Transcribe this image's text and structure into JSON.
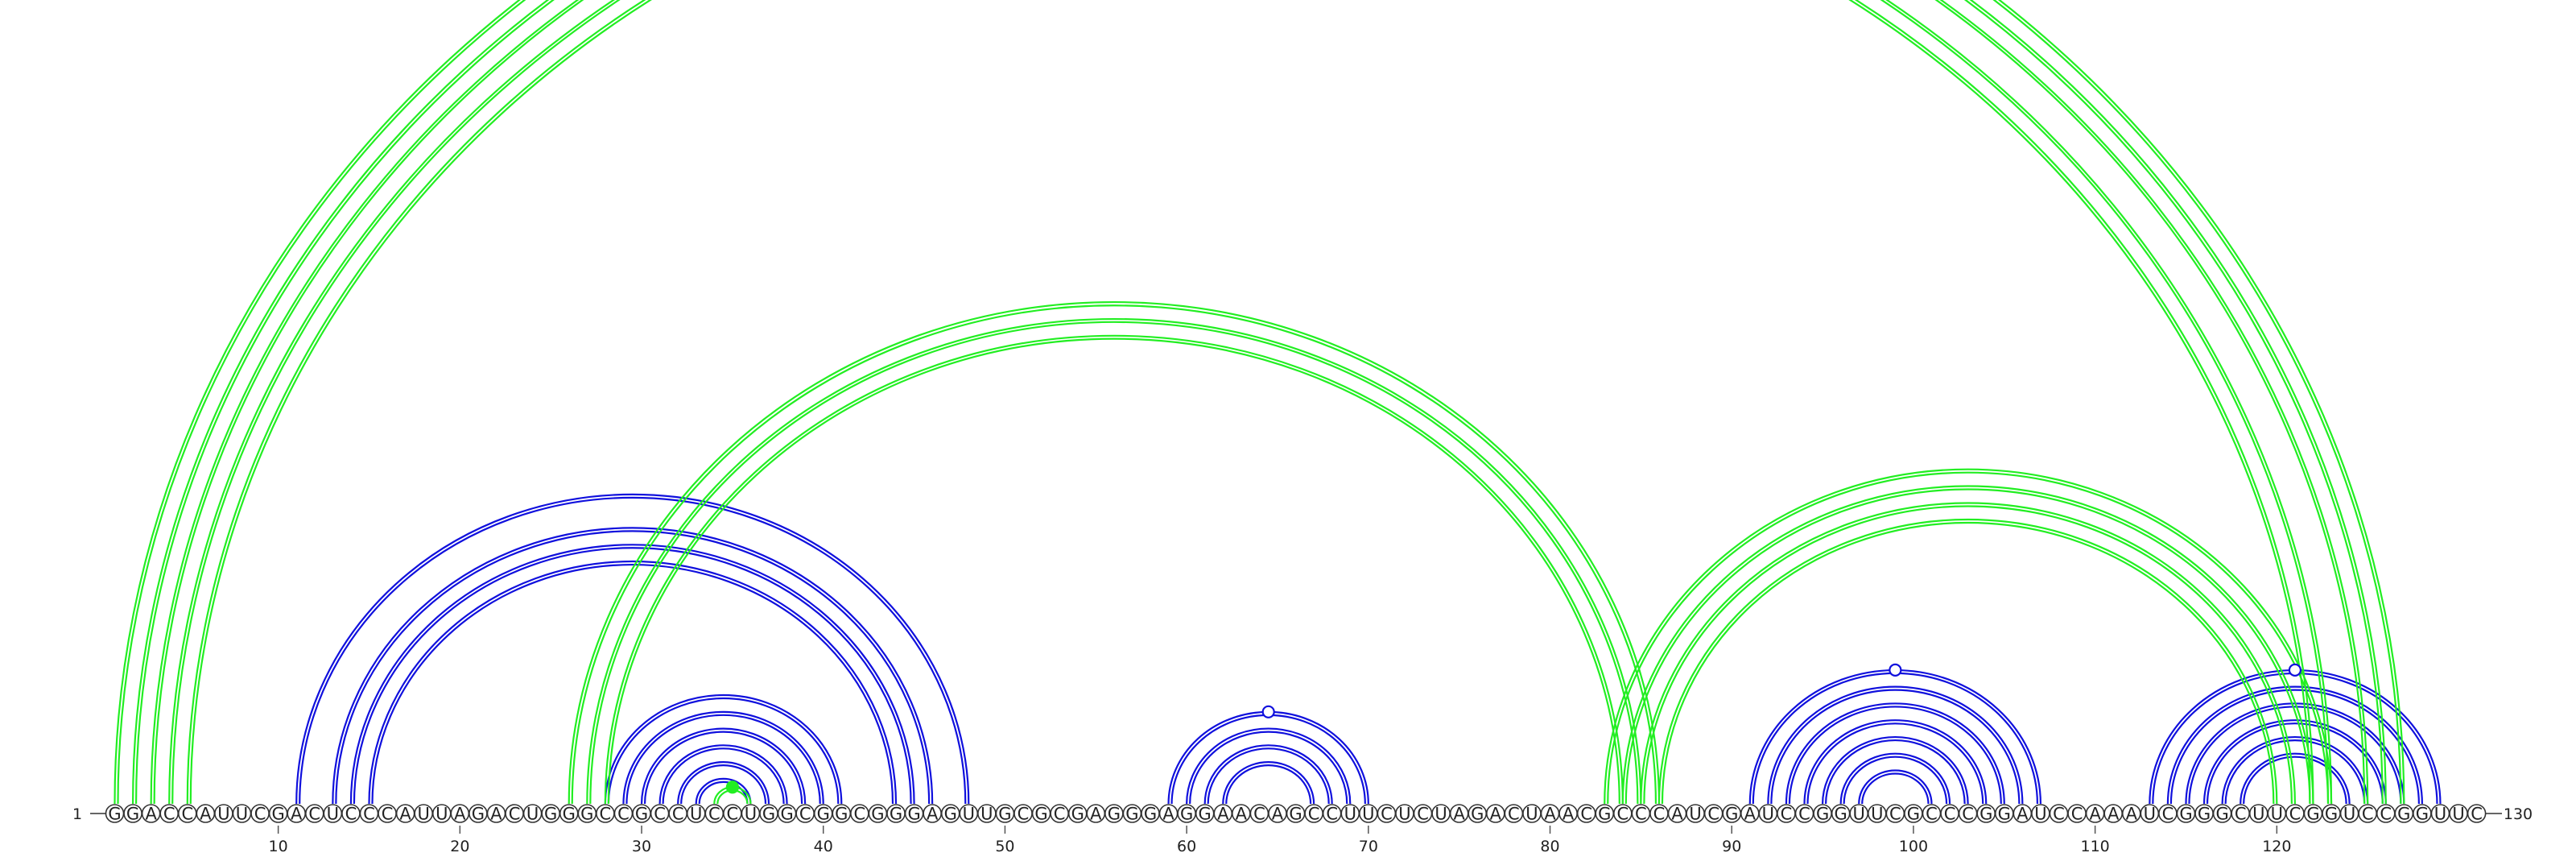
{
  "sequence": "GGACCAUUCGACUCCCAUUAGACUGGGCCGCCUCCUGGCGGCGGGAGUUGCGCGAGGGAGGAACAGCCUUCUCUAGACUAACGCCCAUCGAUCCGGUUCGCCCGGAUCCAAAUCGGGCUUCGGUCCGGUUC",
  "start_label": "1",
  "end_label": "130",
  "tick_labels": [
    "10",
    "20",
    "30",
    "40",
    "50",
    "60",
    "70",
    "80",
    "90",
    "100",
    "110",
    "120"
  ],
  "colors": {
    "pseudoknot": "#22ee22",
    "nested": "#1010dd"
  },
  "chart_data": {
    "type": "arc-diagram",
    "length": 130,
    "ticks": [
      10,
      20,
      30,
      40,
      50,
      60,
      70,
      80,
      90,
      100,
      110,
      120
    ],
    "nested_pairs": [
      [
        11,
        48
      ],
      [
        13,
        46
      ],
      [
        14,
        45
      ],
      [
        15,
        44
      ],
      [
        28,
        41
      ],
      [
        29,
        40
      ],
      [
        30,
        39
      ],
      [
        31,
        38
      ],
      [
        32,
        37
      ],
      [
        33,
        36
      ],
      [
        59,
        70
      ],
      [
        60,
        69
      ],
      [
        61,
        68
      ],
      [
        62,
        67
      ],
      [
        91,
        107
      ],
      [
        92,
        106
      ],
      [
        93,
        105
      ],
      [
        94,
        104
      ],
      [
        95,
        103
      ],
      [
        96,
        102
      ],
      [
        97,
        101
      ],
      [
        113,
        129
      ],
      [
        114,
        128
      ],
      [
        115,
        127
      ],
      [
        116,
        126
      ],
      [
        117,
        125
      ],
      [
        118,
        124
      ]
    ],
    "pseudoknot_pairs": [
      [
        1,
        127
      ],
      [
        2,
        126
      ],
      [
        3,
        125
      ],
      [
        4,
        123
      ],
      [
        5,
        122
      ],
      [
        26,
        86
      ],
      [
        27,
        85
      ],
      [
        28,
        84
      ],
      [
        83,
        123
      ],
      [
        84,
        122
      ],
      [
        85,
        121
      ],
      [
        86,
        120
      ],
      [
        34,
        36
      ]
    ],
    "markers": [
      {
        "position": 65,
        "kind": "open",
        "color": "pseudoknot"
      },
      {
        "position": 64,
        "kind": "open",
        "color": "nested"
      },
      {
        "position": 99,
        "kind": "open",
        "color": "nested"
      },
      {
        "position": 120,
        "kind": "open",
        "color": "nested"
      },
      {
        "position": 35,
        "kind": "filled",
        "color": "pseudoknot"
      }
    ]
  }
}
